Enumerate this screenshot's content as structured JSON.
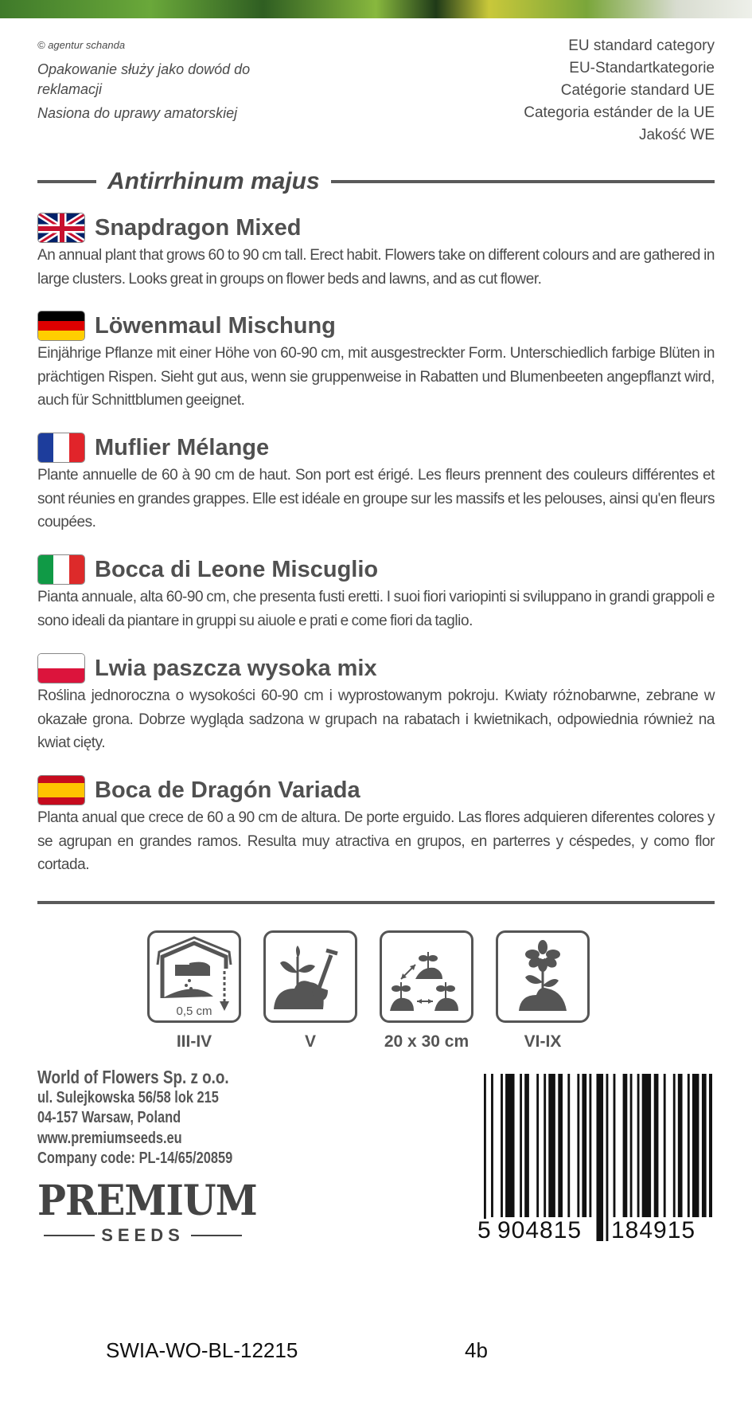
{
  "header": {
    "copyright": "© agentur schanda",
    "left_notes": [
      "Opakowanie służy jako dowód do reklamacji",
      "Nasiona do uprawy amatorskiej"
    ],
    "eu_category": [
      "EU standard category",
      "EU-Standartkategorie",
      "Catégorie standard UE",
      "Categoria estánder de la UE",
      "Jakość WE"
    ]
  },
  "latin_name": "Antirrhinum majus",
  "sections": [
    {
      "lang": "en",
      "flag": "uk-flag",
      "title": "Snapdragon Mixed",
      "text": "An annual plant that grows 60 to 90 cm tall. Erect habit. Flowers take on different colours and are gathered in large clusters. Looks great in groups on flower beds and lawns, and as cut flower."
    },
    {
      "lang": "de",
      "flag": "germany-flag",
      "title": "Löwenmaul Mischung",
      "text": "Einjährige Pflanze mit einer Höhe von 60-90 cm, mit ausgestreckter Form. Unterschiedlich farbige Blüten in prächtigen Rispen. Sieht gut aus, wenn sie gruppenweise in Rabatten und Blumenbeeten angepflanzt wird, auch für Schnittblumen geeignet."
    },
    {
      "lang": "fr",
      "flag": "france-flag",
      "title": "Muflier Mélange",
      "text": "Plante annuelle de 60 à 90 cm de haut. Son port est érigé. Les fleurs prennent des couleurs différentes et sont réunies en grandes grappes. Elle est idéale en groupe sur les massifs et les pelouses, ainsi qu'en fleurs coupées."
    },
    {
      "lang": "it",
      "flag": "italy-flag",
      "title": "Bocca di Leone Miscuglio",
      "text": "Pianta annuale, alta 60-90 cm, che presenta fusti eretti. I suoi fiori variopinti si sviluppano in grandi grappoli e sono ideali da piantare in gruppi su aiuole e prati e come fiori da taglio."
    },
    {
      "lang": "pl",
      "flag": "poland-flag",
      "title": "Lwia paszcza wysoka mix",
      "text": "Roślina jednoroczna o wysokości 60-90 cm i wyprostowanym pokroju. Kwiaty różnobarwne, zebrane w okazałe grona. Dobrze wygląda sadzona w grupach na rabatach i kwietnikach, odpowiednia również na kwiat cięty."
    },
    {
      "lang": "es",
      "flag": "spain-flag",
      "title": "Boca de Dragón Variada",
      "text": "Planta anual que crece de 60 a 90 cm de altura. De porte erguido. Las flores adquieren diferentes colores y se agrupan en grandes ramos. Resulta muy atractiva en grupos, en parterres y céspedes, y como flor cortada."
    }
  ],
  "icons": [
    {
      "name": "sowing-under-cover-icon",
      "depth": "0,5 cm",
      "label": "III-IV"
    },
    {
      "name": "planting-out-icon",
      "label": "V"
    },
    {
      "name": "spacing-icon",
      "label": "20 x 30 cm"
    },
    {
      "name": "flowering-icon",
      "label": "VI-IX"
    }
  ],
  "company": {
    "name": "World of Flowers Sp. z o.o.",
    "address1": "ul. Sulejkowska 56/58 lok 215",
    "address2": "04-157 Warsaw, Poland",
    "website": "www.premiumseeds.eu",
    "code": "Company code: PL-14/65/20859"
  },
  "logo": {
    "line1": "PREMIUM",
    "line2": "SEEDS"
  },
  "barcode": {
    "digits": [
      "5",
      "904815",
      "184915"
    ]
  },
  "footer": {
    "code": "SWIA-WO-BL-12215",
    "variant": "4b"
  },
  "colors": {
    "text": "#4a4a4a",
    "rule": "#5a5a5a"
  }
}
